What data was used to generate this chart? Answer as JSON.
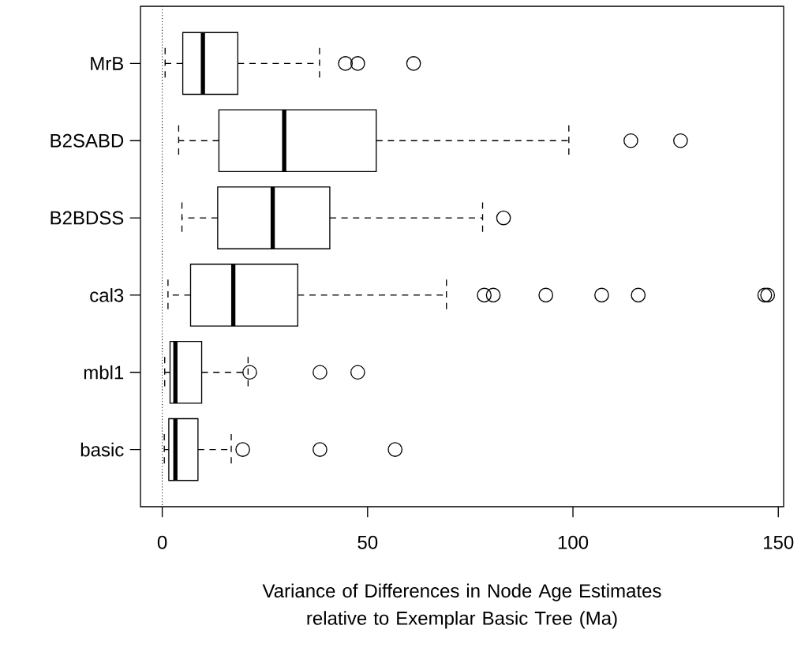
{
  "chart_data": {
    "type": "box",
    "orientation": "horizontal",
    "categories": [
      "MrB",
      "B2SABD",
      "B2BDSS",
      "cal3",
      "mbl1",
      "basic"
    ],
    "boxes": [
      {
        "low": 0.7,
        "q1": 5.0,
        "median": 9.9,
        "q3": 18.4,
        "high": 38.3,
        "outliers": [
          44.6,
          47.6,
          61.2
        ]
      },
      {
        "low": 4.0,
        "q1": 13.8,
        "median": 29.7,
        "q3": 52.1,
        "high": 99.0,
        "outliers": [
          114.1,
          126.2
        ]
      },
      {
        "low": 4.8,
        "q1": 13.5,
        "median": 26.9,
        "q3": 40.8,
        "high": 78.0,
        "outliers": [
          83.1
        ]
      },
      {
        "low": 1.4,
        "q1": 6.9,
        "median": 17.3,
        "q3": 33.0,
        "high": 69.2,
        "outliers": [
          78.4,
          80.6,
          93.4,
          107.0,
          115.9,
          146.7,
          147.4
        ]
      },
      {
        "low": 0.6,
        "q1": 1.9,
        "median": 3.2,
        "q3": 9.6,
        "high": 20.9,
        "outliers": [
          21.3,
          38.4,
          47.6
        ]
      },
      {
        "low": 0.5,
        "q1": 1.6,
        "median": 3.2,
        "q3": 8.7,
        "high": 16.8,
        "outliers": [
          19.6,
          38.4,
          56.7
        ]
      }
    ],
    "xlabel": "Variance of Differences in Node Age Estimates relative to Exemplar Basic Tree (Ma)",
    "xlim": [
      -5.3,
      151.3
    ],
    "xticks": [
      0,
      50,
      100,
      150
    ],
    "ref_lines": [
      {
        "axis": "x",
        "value": 0,
        "line_style": "dotted"
      }
    ]
  }
}
